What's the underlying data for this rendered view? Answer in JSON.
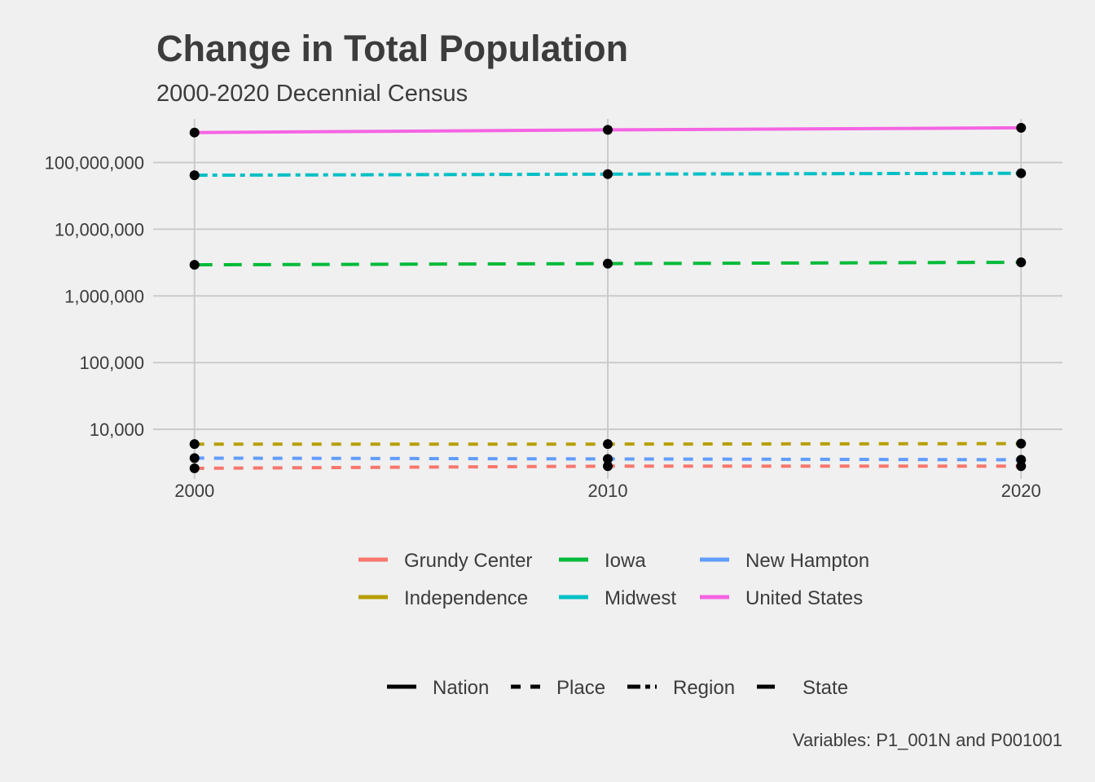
{
  "chart_data": {
    "type": "line",
    "title": "Change in Total Population",
    "subtitle": "2000-2020 Decennial Census",
    "caption": "Variables: P1_001N and P001001",
    "xlabel": "",
    "ylabel": "",
    "x": [
      2000,
      2010,
      2020
    ],
    "x_ticks": [
      "2000",
      "2010",
      "2020"
    ],
    "y_scale": "log10",
    "ylim": [
      1800,
      450000000
    ],
    "y_ticks": [
      {
        "value": 10000,
        "label": "10,000"
      },
      {
        "value": 100000,
        "label": "100,000"
      },
      {
        "value": 1000000,
        "label": "1,000,000"
      },
      {
        "value": 10000000,
        "label": "10,000,000"
      },
      {
        "value": 100000000,
        "label": "100,000,000"
      }
    ],
    "grid": true,
    "legend_position": "bottom",
    "series": [
      {
        "name": "Grundy Center",
        "color": "#f8766d",
        "type": "Place",
        "values": [
          2600,
          2800,
          2800
        ]
      },
      {
        "name": "Independence",
        "color": "#b79f00",
        "type": "Place",
        "values": [
          6000,
          6000,
          6100
        ]
      },
      {
        "name": "Iowa",
        "color": "#00ba38",
        "type": "State",
        "values": [
          2926324,
          3046355,
          3190369
        ]
      },
      {
        "name": "Midwest",
        "color": "#00bfc4",
        "type": "Region",
        "values": [
          64392776,
          66927001,
          68985454
        ]
      },
      {
        "name": "New Hampton",
        "color": "#619cff",
        "type": "Place",
        "values": [
          3700,
          3600,
          3500
        ]
      },
      {
        "name": "United States",
        "color": "#f564e3",
        "type": "Nation",
        "values": [
          281421906,
          308745538,
          331449281
        ]
      }
    ],
    "type_legend": [
      {
        "name": "Nation",
        "dash": "none"
      },
      {
        "name": "Place",
        "dash": "12,12"
      },
      {
        "name": "Region",
        "dash": "16,6,6,6"
      },
      {
        "name": "State",
        "dash": "22,14"
      }
    ]
  }
}
